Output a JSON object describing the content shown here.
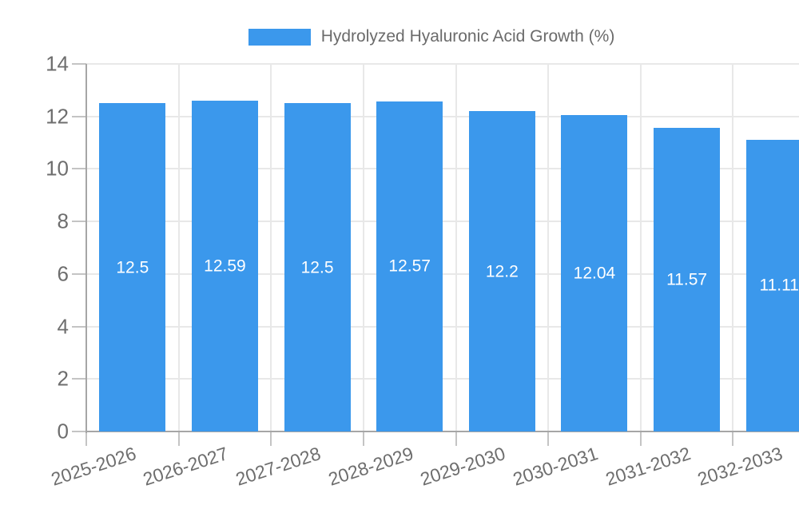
{
  "chart_data": {
    "type": "bar",
    "title": "",
    "legend": "Hydrolyzed Hyaluronic Acid Growth (%)",
    "legend_position": "top",
    "categories": [
      "2025-2026",
      "2026-2027",
      "2027-2028",
      "2028-2029",
      "2029-2030",
      "2030-2031",
      "2031-2032",
      "2032-2033"
    ],
    "values": [
      12.5,
      12.59,
      12.5,
      12.57,
      12.2,
      12.04,
      11.57,
      11.11
    ],
    "value_labels": [
      "12.5",
      "12.59",
      "12.5",
      "12.57",
      "12.2",
      "12.04",
      "11.57",
      "11.11"
    ],
    "xlabel": "",
    "ylabel": "",
    "y_ticks": [
      0,
      2,
      4,
      6,
      8,
      10,
      12,
      14
    ],
    "ylim": [
      0,
      14
    ],
    "grid": true,
    "colors": {
      "bar": "#3b98ec",
      "axis": "#a6a6a6",
      "tick": "#c4c4c4",
      "grid": "#e8e8e8",
      "tick_label": "#6e6e6e",
      "legend_text": "#6b6b6b",
      "value_label": "#ffffff"
    }
  }
}
